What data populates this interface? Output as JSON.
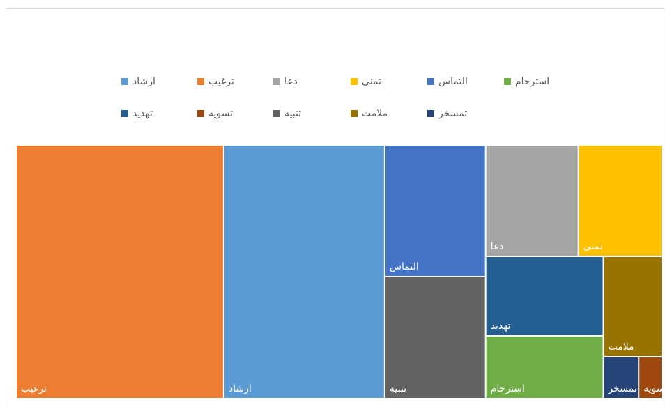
{
  "chart_data": {
    "type": "treemap",
    "series": [
      {
        "name": "ترغیب",
        "color": "#ed7d31",
        "values": [
          107
        ]
      },
      {
        "name": "ارشاد",
        "color": "#5b9bd5",
        "values": [
          83
        ]
      },
      {
        "name": "التماس",
        "color": "#4472c4",
        "values": [
          27
        ]
      },
      {
        "name": "تنبیه",
        "color": "#636363",
        "values": [
          25
        ]
      },
      {
        "name": "دعا",
        "color": "#a5a5a5",
        "values": [
          21
        ]
      },
      {
        "name": "تمنی",
        "color": "#ffc000",
        "values": [
          19
        ]
      },
      {
        "name": "تهدید",
        "color": "#255e91",
        "values": [
          19
        ]
      },
      {
        "name": "استرحام",
        "color": "#70ad47",
        "values": [
          15
        ]
      },
      {
        "name": "ملامت",
        "color": "#997300",
        "values": [
          12
        ]
      },
      {
        "name": "تمسخر",
        "color": "#264478",
        "values": [
          3
        ]
      },
      {
        "name": "تسویه",
        "color": "#9e480e",
        "values": [
          2
        ]
      }
    ],
    "legend": "top"
  }
}
